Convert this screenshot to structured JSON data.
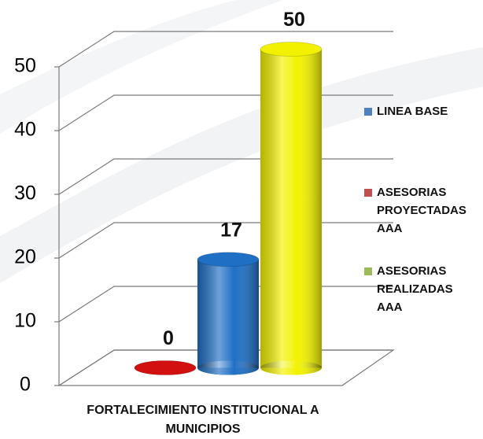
{
  "chart_data": {
    "type": "bar3d",
    "categories": [
      "FORTALECIMIENTO INSTITUCIONAL  A MUNICIPIOS"
    ],
    "series": [
      {
        "name": "LINEA BASE",
        "color": "#1f6fc5",
        "legend_color": "#4f81bd",
        "values": [
          17
        ]
      },
      {
        "name": "ASESORIAS PROYECTADAS AAA",
        "color": "#d21010",
        "legend_color": "#c0504d",
        "values": [
          0
        ]
      },
      {
        "name": "ASESORIAS REALIZADAS AAA",
        "color": "#f2f200",
        "legend_color": "#9bbb59",
        "values": [
          50
        ]
      }
    ],
    "ylim": [
      0,
      50
    ],
    "yticks": [
      0,
      10,
      20,
      30,
      40,
      50
    ],
    "grid": true,
    "legend": "right"
  }
}
